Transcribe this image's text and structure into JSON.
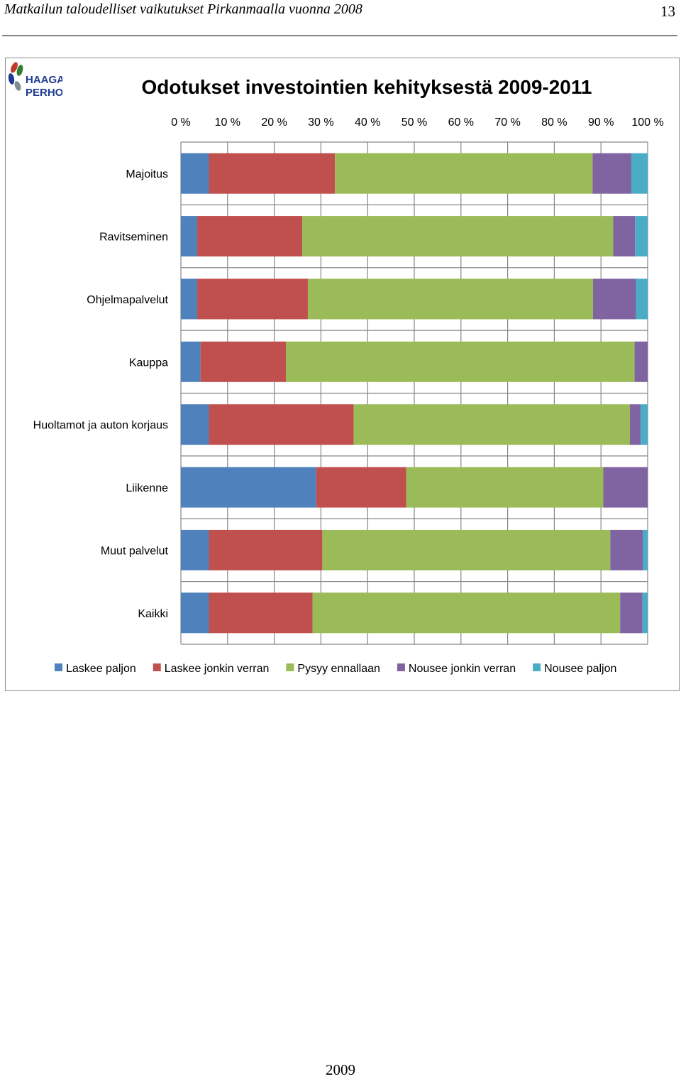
{
  "header": {
    "title": "Matkailun taloudelliset vaikutukset Pirkanmaalla vuonna 2008",
    "page_number": "13"
  },
  "logo": {
    "line1": "HAAGA",
    "line2": "PERHO",
    "colors": [
      "#c0392b",
      "#2e7d32",
      "#1f3a93",
      "#7f8c8d"
    ]
  },
  "footer": {
    "year": "2009"
  },
  "colors": {
    "Laskee paljon": "#4f81bd",
    "Laskee jonkin verran": "#c0504d",
    "Pysyy ennallaan": "#9bbb59",
    "Nousee jonkin verran": "#8064a2",
    "Nousee paljon": "#4bacc6"
  },
  "chart_data": {
    "type": "bar",
    "orientation": "horizontal",
    "stacked": true,
    "title": "Odotukset investointien kehityksestä 2009-2011",
    "x_tick_labels": [
      "0 %",
      "10 %",
      "20 %",
      "30 %",
      "40 %",
      "50 %",
      "60 %",
      "70 %",
      "80 %",
      "90 %",
      "100 %"
    ],
    "xlim": [
      0,
      100
    ],
    "x_axis_position": "top",
    "grid": true,
    "legend_position": "bottom",
    "categories": [
      "Majoitus",
      "Ravitseminen",
      "Ohjelmapalvelut",
      "Kauppa",
      "Huoltamot ja auton korjaus",
      "Liikenne",
      "Muut palvelut",
      "Kaikki"
    ],
    "series": [
      {
        "name": "Laskee paljon",
        "values": [
          6.0,
          3.5,
          3.5,
          4.2,
          6.0,
          29.0,
          6.0,
          6.0
        ]
      },
      {
        "name": "Laskee jonkin verran",
        "values": [
          27.0,
          22.5,
          23.7,
          18.3,
          31.0,
          19.3,
          24.3,
          22.2
        ]
      },
      {
        "name": "Pysyy ennallaan",
        "values": [
          55.2,
          66.6,
          61.1,
          74.7,
          59.2,
          42.2,
          61.7,
          65.9
        ]
      },
      {
        "name": "Nousee jonkin verran",
        "values": [
          8.3,
          4.7,
          9.2,
          2.8,
          2.3,
          9.5,
          7.0,
          4.8
        ]
      },
      {
        "name": "Nousee paljon",
        "values": [
          3.5,
          2.7,
          2.5,
          0.0,
          1.5,
          0.0,
          1.0,
          1.1
        ]
      }
    ]
  }
}
